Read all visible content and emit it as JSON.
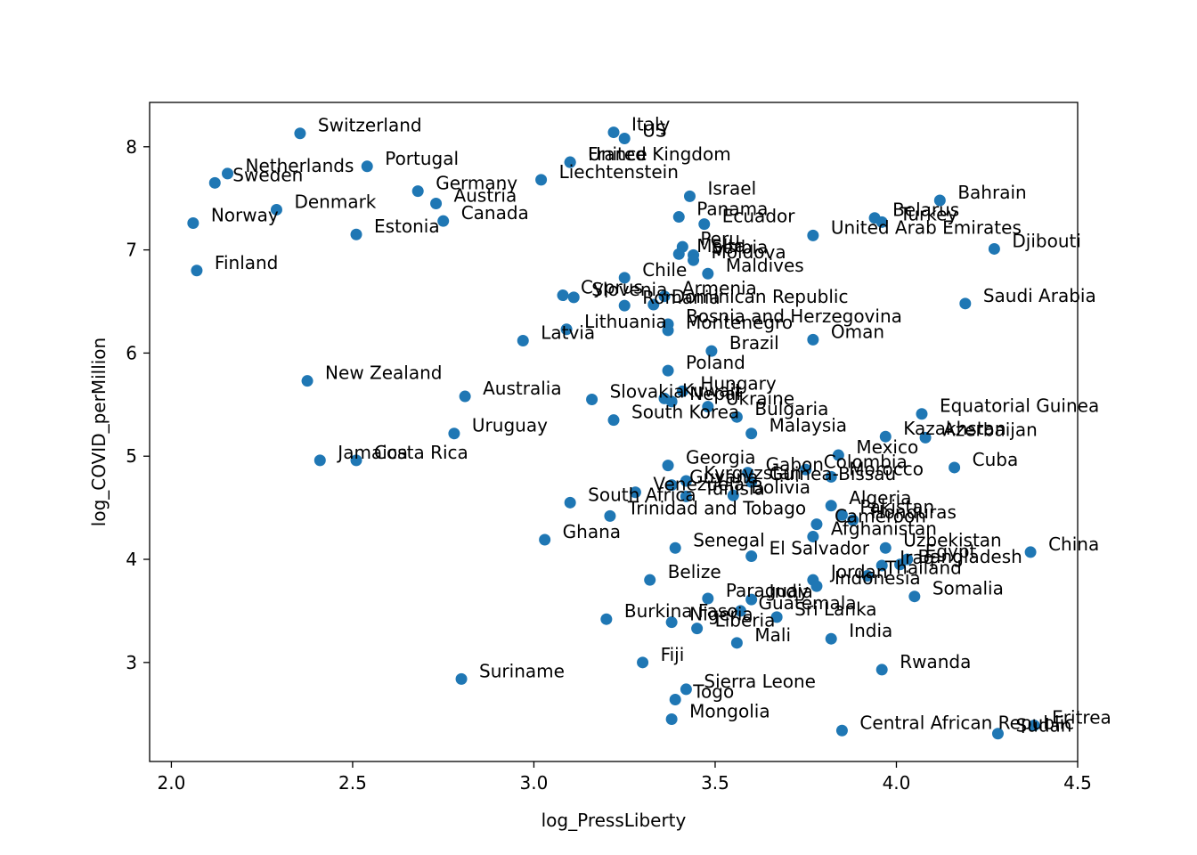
{
  "chart_data": {
    "type": "scatter",
    "title": "",
    "xlabel": "log_PressLiberty",
    "ylabel": "log_COVID_perMillion",
    "xlim": [
      1.94,
      4.5
    ],
    "ylim": [
      2.04,
      8.43
    ],
    "xticks": [
      2.0,
      2.5,
      3.0,
      3.5,
      4.0,
      4.5
    ],
    "xtick_labels": [
      "2.0",
      "2.5",
      "3.0",
      "3.5",
      "4.0",
      "4.5"
    ],
    "yticks": [
      3,
      4,
      5,
      6,
      7,
      8
    ],
    "ytick_labels": [
      "3",
      "4",
      "5",
      "6",
      "7",
      "8"
    ],
    "grid": false,
    "marker_color": "#1f77b4",
    "points": [
      {
        "label": "Switzerland",
        "x": 2.355,
        "y": 8.13
      },
      {
        "label": "Italy",
        "x": 3.22,
        "y": 8.14
      },
      {
        "label": "US",
        "x": 3.25,
        "y": 8.08
      },
      {
        "label": "France",
        "x": 3.1,
        "y": 7.85
      },
      {
        "label": "United Kingdom",
        "x": 3.1,
        "y": 7.85
      },
      {
        "label": "Liechtenstein",
        "x": 3.02,
        "y": 7.68
      },
      {
        "label": "Netherlands",
        "x": 2.155,
        "y": 7.74
      },
      {
        "label": "Sweden",
        "x": 2.12,
        "y": 7.65
      },
      {
        "label": "Portugal",
        "x": 2.54,
        "y": 7.81
      },
      {
        "label": "Germany",
        "x": 2.68,
        "y": 7.57
      },
      {
        "label": "Austria",
        "x": 2.73,
        "y": 7.45
      },
      {
        "label": "Canada",
        "x": 2.75,
        "y": 7.28
      },
      {
        "label": "Denmark",
        "x": 2.29,
        "y": 7.39
      },
      {
        "label": "Norway",
        "x": 2.06,
        "y": 7.26
      },
      {
        "label": "Estonia",
        "x": 2.51,
        "y": 7.15
      },
      {
        "label": "Finland",
        "x": 2.07,
        "y": 6.8
      },
      {
        "label": "Bahrain",
        "x": 4.12,
        "y": 7.48
      },
      {
        "label": "Israel",
        "x": 3.43,
        "y": 7.52
      },
      {
        "label": "Panama",
        "x": 3.4,
        "y": 7.32
      },
      {
        "label": "Ecuador",
        "x": 3.47,
        "y": 7.25
      },
      {
        "label": "Belarus",
        "x": 3.94,
        "y": 7.31
      },
      {
        "label": "Turkey",
        "x": 3.96,
        "y": 7.27
      },
      {
        "label": "United Arab Emirates",
        "x": 3.77,
        "y": 7.14
      },
      {
        "label": "Djibouti",
        "x": 4.27,
        "y": 7.01
      },
      {
        "label": "Peru",
        "x": 3.41,
        "y": 7.03
      },
      {
        "label": "Malta",
        "x": 3.4,
        "y": 6.96
      },
      {
        "label": "Serbia",
        "x": 3.44,
        "y": 6.95
      },
      {
        "label": "Moldova",
        "x": 3.44,
        "y": 6.9
      },
      {
        "label": "Chile",
        "x": 3.25,
        "y": 6.73
      },
      {
        "label": "Maldives",
        "x": 3.48,
        "y": 6.77
      },
      {
        "label": "Saudi Arabia",
        "x": 4.19,
        "y": 6.48
      },
      {
        "label": "Cyprus",
        "x": 3.08,
        "y": 6.56
      },
      {
        "label": "Slovenia",
        "x": 3.11,
        "y": 6.54
      },
      {
        "label": "Armenia",
        "x": 3.36,
        "y": 6.55
      },
      {
        "label": "Romania",
        "x": 3.25,
        "y": 6.46
      },
      {
        "label": "Dominican Republic",
        "x": 3.33,
        "y": 6.47
      },
      {
        "label": "Bosnia and Herzegovina",
        "x": 3.37,
        "y": 6.28
      },
      {
        "label": "Lithuania",
        "x": 3.09,
        "y": 6.23
      },
      {
        "label": "Montenegro",
        "x": 3.37,
        "y": 6.22
      },
      {
        "label": "Oman",
        "x": 3.77,
        "y": 6.13
      },
      {
        "label": "Latvia",
        "x": 2.97,
        "y": 6.12
      },
      {
        "label": "Brazil",
        "x": 3.49,
        "y": 6.02
      },
      {
        "label": "Poland",
        "x": 3.37,
        "y": 5.83
      },
      {
        "label": "New Zealand",
        "x": 2.375,
        "y": 5.73
      },
      {
        "label": "Australia",
        "x": 2.81,
        "y": 5.58
      },
      {
        "label": "Slovakia",
        "x": 3.16,
        "y": 5.55
      },
      {
        "label": "Hungary",
        "x": 3.41,
        "y": 5.63
      },
      {
        "label": "Kuwait",
        "x": 3.36,
        "y": 5.56
      },
      {
        "label": "Nepal",
        "x": 3.38,
        "y": 5.53
      },
      {
        "label": "Ukraine",
        "x": 3.48,
        "y": 5.48
      },
      {
        "label": "South Korea",
        "x": 3.22,
        "y": 5.35
      },
      {
        "label": "Bulgaria",
        "x": 3.56,
        "y": 5.38
      },
      {
        "label": "Equatorial Guinea",
        "x": 4.07,
        "y": 5.41
      },
      {
        "label": "Uruguay",
        "x": 2.78,
        "y": 5.22
      },
      {
        "label": "Malaysia",
        "x": 3.6,
        "y": 5.22
      },
      {
        "label": "Kazakhstan",
        "x": 3.97,
        "y": 5.19
      },
      {
        "label": "Azerbaijan",
        "x": 4.08,
        "y": 5.18
      },
      {
        "label": "Jamaica",
        "x": 2.41,
        "y": 4.96
      },
      {
        "label": "Costa Rica",
        "x": 2.51,
        "y": 4.96
      },
      {
        "label": "Mexico",
        "x": 3.84,
        "y": 5.01
      },
      {
        "label": "Cuba",
        "x": 4.16,
        "y": 4.89
      },
      {
        "label": "Georgia",
        "x": 3.37,
        "y": 4.91
      },
      {
        "label": "Gabon",
        "x": 3.59,
        "y": 4.84
      },
      {
        "label": "Colombia",
        "x": 3.75,
        "y": 4.87
      },
      {
        "label": "Morocco",
        "x": 3.82,
        "y": 4.8
      },
      {
        "label": "Kyrgyzstan",
        "x": 3.42,
        "y": 4.76
      },
      {
        "label": "Guinea-Bissau",
        "x": 3.6,
        "y": 4.75
      },
      {
        "label": "Guyana",
        "x": 3.38,
        "y": 4.72
      },
      {
        "label": "South Africa",
        "x": 3.1,
        "y": 4.55
      },
      {
        "label": "Venezuela",
        "x": 3.28,
        "y": 4.65
      },
      {
        "label": "Bolivia",
        "x": 3.55,
        "y": 4.62
      },
      {
        "label": "Algeria",
        "x": 3.82,
        "y": 4.52
      },
      {
        "label": "Tunisia",
        "x": 3.42,
        "y": 4.61
      },
      {
        "label": "Trinidad and Tobago",
        "x": 3.21,
        "y": 4.42
      },
      {
        "label": "Pakistan",
        "x": 3.85,
        "y": 4.43
      },
      {
        "label": "Honduras",
        "x": 3.88,
        "y": 4.38
      },
      {
        "label": "Cameroon",
        "x": 3.78,
        "y": 4.34
      },
      {
        "label": "Ghana",
        "x": 3.03,
        "y": 4.19
      },
      {
        "label": "El Salvador",
        "x": 3.6,
        "y": 4.03
      },
      {
        "label": "Senegal",
        "x": 3.39,
        "y": 4.11
      },
      {
        "label": "Afghanistan",
        "x": 3.77,
        "y": 4.22
      },
      {
        "label": "Uzbekistan",
        "x": 3.97,
        "y": 4.11
      },
      {
        "label": "Egypt",
        "x": 4.03,
        "y": 4.0
      },
      {
        "label": "Iraq",
        "x": 3.96,
        "y": 3.94
      },
      {
        "label": "China",
        "x": 4.37,
        "y": 4.07
      },
      {
        "label": "Bangladesh",
        "x": 4.01,
        "y": 3.95
      },
      {
        "label": "Belize",
        "x": 3.32,
        "y": 3.8
      },
      {
        "label": "Jordan",
        "x": 3.77,
        "y": 3.8
      },
      {
        "label": "Thailand",
        "x": 3.92,
        "y": 3.84
      },
      {
        "label": "Somalia",
        "x": 4.05,
        "y": 3.64
      },
      {
        "label": "Paraguay",
        "x": 3.48,
        "y": 3.62
      },
      {
        "label": "India ",
        "x": 3.6,
        "y": 3.61
      },
      {
        "label": "Indonesia",
        "x": 3.78,
        "y": 3.74
      },
      {
        "label": "Guatemala",
        "x": 3.57,
        "y": 3.5
      },
      {
        "label": "Sri Lanka",
        "x": 3.67,
        "y": 3.44
      },
      {
        "label": "Burkina Faso",
        "x": 3.2,
        "y": 3.42
      },
      {
        "label": "Nigeria",
        "x": 3.38,
        "y": 3.39
      },
      {
        "label": "Liberia",
        "x": 3.45,
        "y": 3.33
      },
      {
        "label": "Mali",
        "x": 3.56,
        "y": 3.19
      },
      {
        "label": "India",
        "x": 3.82,
        "y": 3.23
      },
      {
        "label": "Fiji",
        "x": 3.3,
        "y": 3.0
      },
      {
        "label": "Rwanda",
        "x": 3.96,
        "y": 2.93
      },
      {
        "label": "Suriname",
        "x": 2.8,
        "y": 2.84
      },
      {
        "label": "Sierra Leone",
        "x": 3.42,
        "y": 2.74
      },
      {
        "label": "Togo",
        "x": 3.39,
        "y": 2.64
      },
      {
        "label": "Mongolia",
        "x": 3.38,
        "y": 2.45
      },
      {
        "label": "Central African Republic",
        "x": 3.85,
        "y": 2.34
      },
      {
        "label": "Eritrea",
        "x": 4.38,
        "y": 2.39
      },
      {
        "label": "Sudan",
        "x": 4.28,
        "y": 2.31
      }
    ]
  }
}
